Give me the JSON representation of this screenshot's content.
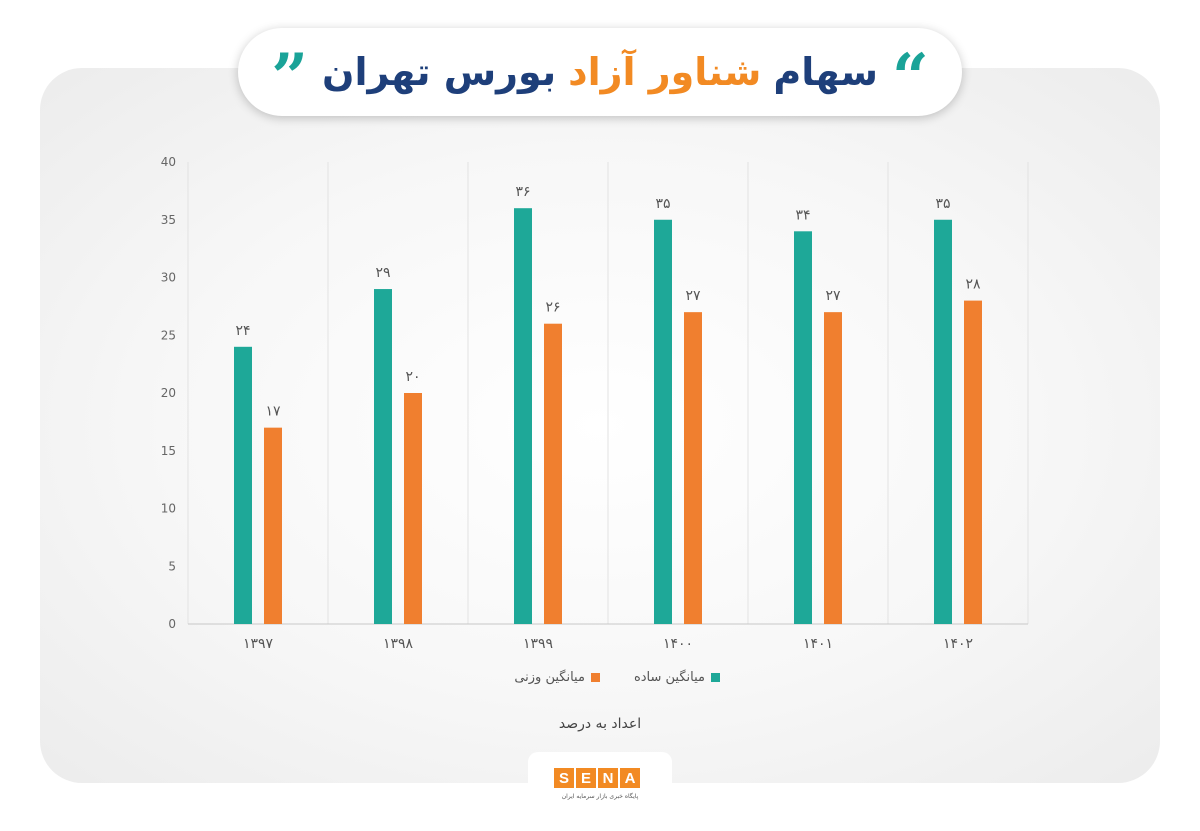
{
  "header": {
    "title_part1": "سهام",
    "title_part2": "شناور آزاد",
    "title_part3": "بورس تهران",
    "quote_open": "“",
    "quote_close": "”"
  },
  "colors": {
    "title_teal": "#1aa398",
    "title_orange": "#f28a23",
    "title_navy": "#1e3f7a",
    "series1": "#1ea898",
    "series2": "#f07f2f"
  },
  "chart_data": {
    "type": "bar",
    "categories": [
      "۱۳۹۷",
      "۱۳۹۸",
      "۱۳۹۹",
      "۱۴۰۰",
      "۱۴۰۱",
      "۱۴۰۲"
    ],
    "series": [
      {
        "name": "میانگین ساده",
        "values": [
          24,
          29,
          36,
          35,
          34,
          35
        ],
        "labels": [
          "۲۴",
          "۲۹",
          "۳۶",
          "۳۵",
          "۳۴",
          "۳۵"
        ]
      },
      {
        "name": "میانگین وزنی",
        "values": [
          17,
          20,
          26,
          27,
          27,
          28
        ],
        "labels": [
          "۱۷",
          "۲۰",
          "۲۶",
          "۲۷",
          "۲۷",
          "۲۸"
        ]
      }
    ],
    "ylim": [
      0,
      40
    ],
    "yticks": [
      0,
      5,
      10,
      15,
      20,
      25,
      30,
      35,
      40
    ],
    "legend_position": "bottom",
    "grid": "vertical category separators"
  },
  "note": "اعداد به درصد",
  "logo": {
    "letters": [
      "S",
      "E",
      "N",
      "A"
    ],
    "subtitle": "پایگاه خبری بازار سرمایه ایران"
  }
}
